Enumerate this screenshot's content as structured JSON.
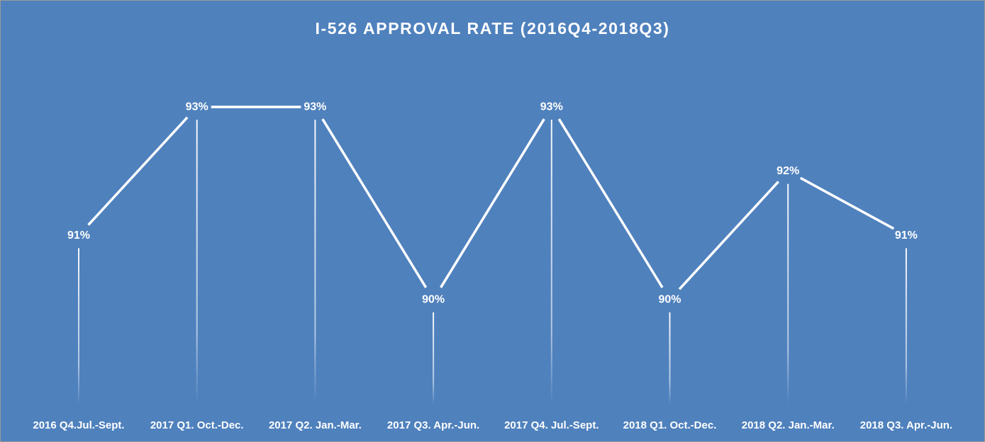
{
  "chart_data": {
    "type": "line",
    "title": "I-526 APPROVAL RATE (2016Q4-2018Q3)",
    "categories": [
      "2016 Q4.Jul.-Sept.",
      "2017 Q1. Oct.-Dec.",
      "2017 Q2. Jan.-Mar.",
      "2017 Q3. Apr.-Jun.",
      "2017 Q4. Jul.-Sept.",
      "2018 Q1. Oct.-Dec.",
      "2018 Q2. Jan.-Mar.",
      "2018 Q3. Apr.-Jun."
    ],
    "values": [
      91,
      93,
      93,
      90,
      93,
      90,
      92,
      91
    ],
    "data_labels": [
      "91%",
      "93%",
      "93%",
      "90%",
      "93%",
      "90%",
      "92%",
      "91%"
    ],
    "value_unit": "%",
    "drop_lines": true,
    "gridlines": false,
    "legend": "none",
    "colors": {
      "background": "#4f81bd",
      "line": "#ffffff",
      "text": "#ffffff"
    }
  }
}
